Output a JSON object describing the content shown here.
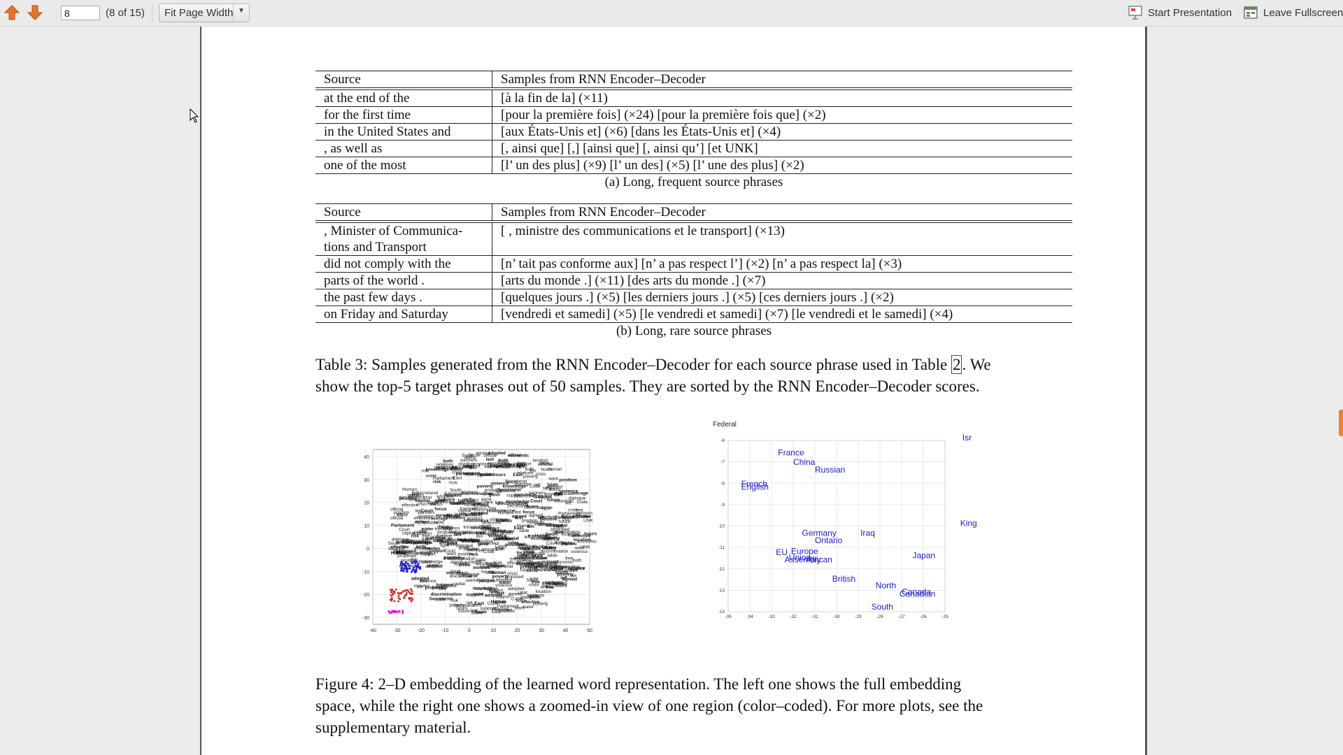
{
  "toolbar": {
    "page_value": "8",
    "page_count": "(8 of 15)",
    "zoom_label": "Fit Page Width",
    "start_presentation": "Start Presentation",
    "leave_fullscreen": "Leave Fullscreen",
    "icons": [
      "arrow-up-icon",
      "arrow-down-icon",
      "presentation-icon",
      "fullscreen-icon"
    ],
    "arrow_color": "#e8742a"
  },
  "table_a": {
    "header": [
      "Source",
      "Samples from RNN Encoder–Decoder"
    ],
    "rows": [
      [
        "at the end of the",
        "[à la fin de la] (×11)"
      ],
      [
        "for the first time",
        "[pour la première fois] (×24) [pour la première fois que] (×2)"
      ],
      [
        "in the United States and",
        "[aux États-Unis et] (×6) [dans les États-Unis et] (×4)"
      ],
      [
        ", as well as",
        "[, ainsi que] [,] [ainsi que] [, ainsi qu’] [et UNK]"
      ],
      [
        "one of the most",
        "[l’ un des plus] (×9) [l’ un des] (×5) [l’ une des plus] (×2)"
      ]
    ],
    "caption": "(a) Long, frequent source phrases"
  },
  "table_b": {
    "header": [
      "Source",
      "Samples from RNN Encoder–Decoder"
    ],
    "rows": [
      [
        ", Minister of Communica-",
        "[ , ministre des communications et le transport] (×13)"
      ],
      [
        "tions and Transport",
        ""
      ],
      [
        "did not comply with the",
        "[n’ tait pas conforme aux] [n’ a pas respect l’] (×2) [n’ a pas respect la] (×3)"
      ],
      [
        "parts of the world .",
        "[arts du monde .] (×11) [des arts du monde .] (×7)"
      ],
      [
        "the past few days .",
        "[quelques jours .] (×5) [les derniers jours .] (×5) [ces derniers jours .] (×2)"
      ],
      [
        "on Friday and Saturday",
        "[vendredi et samedi] (×5) [le vendredi et samedi] (×7) [le vendredi et le samedi] (×4)"
      ]
    ],
    "caption": "(b) Long, rare source phrases"
  },
  "table3_caption": {
    "before": "Table 3: Samples generated from the RNN Encoder–Decoder for each source phrase used in Table",
    "ref": "2",
    "after": ". We",
    "line2": "show the top-5 target phrases out of 50 samples. They are sorted by the RNN Encoder–Decoder scores."
  },
  "figure_left": {
    "x_ticks": [
      "-40",
      "-30",
      "-20",
      "-10",
      "0",
      "10",
      "20",
      "30",
      "40",
      "50"
    ],
    "y_ticks": [
      "40",
      "30",
      "20",
      "10",
      "0",
      "-10",
      "-20",
      "-30"
    ],
    "words": [
      "risk",
      "both",
      "ability",
      "balance",
      "focus",
      "left",
      "adopted",
      "proposed",
      "Parliament",
      "Court",
      "UNK",
      "Code",
      "Secretariat",
      "relations",
      "knowledge",
      "discrimination",
      "poverty",
      "light",
      "average",
      "location",
      "good",
      "free",
      "effective",
      "agreed",
      "want",
      "Bin",
      "partners",
      "violence",
      "table",
      "crisis",
      "positive",
      "support",
      "position",
      "minutes",
      "hours",
      "York",
      "East",
      "Human",
      "dialogue",
      "capital",
      "economic",
      "official",
      "water",
      "transport",
      "future",
      "South",
      "last"
    ]
  },
  "figure_right": {
    "top_label": "Federal",
    "x_ticks": [
      "-35",
      "-34",
      "-33",
      "-32",
      "-31",
      "-30",
      "-29",
      "-28",
      "-27",
      "-26",
      "-25"
    ],
    "y_ticks": [
      "-6",
      "-7",
      "-8",
      "-9",
      "-10",
      "-11",
      "-12",
      "-13",
      "-14"
    ],
    "words": [
      {
        "t": "France",
        "x": -32.7,
        "y": -6.7
      },
      {
        "t": "China",
        "x": -32.0,
        "y": -7.15
      },
      {
        "t": "Russian",
        "x": -31.0,
        "y": -7.5
      },
      {
        "t": "French",
        "x": -34.4,
        "y": -8.15
      },
      {
        "t": "English",
        "x": -34.4,
        "y": -8.3
      },
      {
        "t": "Germany",
        "x": -31.6,
        "y": -10.45
      },
      {
        "t": "Ontario",
        "x": -31.0,
        "y": -10.8
      },
      {
        "t": "Iraq",
        "x": -28.9,
        "y": -10.45
      },
      {
        "t": "Europe",
        "x": -32.1,
        "y": -11.3
      },
      {
        "t": "EU",
        "x": -32.8,
        "y": -11.35
      },
      {
        "t": "Union",
        "x": -32.2,
        "y": -11.6
      },
      {
        "t": "African",
        "x": -31.4,
        "y": -11.7
      },
      {
        "t": "Assembly",
        "x": -32.4,
        "y": -11.7
      },
      {
        "t": "Japan",
        "x": -26.5,
        "y": -11.5
      },
      {
        "t": "British",
        "x": -30.2,
        "y": -12.6
      },
      {
        "t": "North",
        "x": -28.2,
        "y": -12.9
      },
      {
        "t": "Canada",
        "x": -27.0,
        "y": -13.2
      },
      {
        "t": "Canadian",
        "x": -27.1,
        "y": -13.3
      },
      {
        "t": "South",
        "x": -28.4,
        "y": -13.9
      },
      {
        "t": "Isr",
        "x": -24.2,
        "y": -6.0
      },
      {
        "t": "King",
        "x": -24.3,
        "y": -10.0
      }
    ],
    "xlim": [
      -35,
      -25
    ],
    "ylim": [
      -14,
      -6
    ],
    "word_color": "#1a1ad0"
  },
  "figure4_caption": [
    "Figure 4: 2–D embedding of the learned word representation. The left one shows the full embedding",
    "space, while the right one shows a zoomed-in view of one region (color–coded). For more plots, see the",
    "supplementary material."
  ]
}
